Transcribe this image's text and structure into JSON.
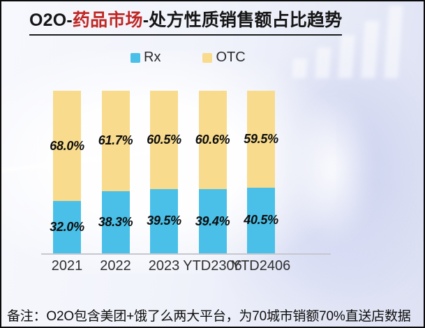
{
  "title": {
    "prefix": "O2O-",
    "highlight": "药品市场",
    "suffix": "-处方性质销售额占比趋势"
  },
  "footer": {
    "note": "备注：O2O包含美团+饿了么两大平台，为70城市销额70%直送店数据"
  },
  "colors": {
    "rx": "#4AC0E8",
    "otc": "#F8DB8D",
    "title_highlight": "#BF2724",
    "axis_line": "#C6C8CE",
    "label_text": "#0C0C0C"
  },
  "chart_data": {
    "type": "bar",
    "stacked": true,
    "unit": "%",
    "title": "O2O-药品市场-处方性质销售额占比趋势",
    "categories": [
      "2021",
      "2022",
      "2023",
      "YTD2306",
      "YTD2406"
    ],
    "series": [
      {
        "name": "Rx",
        "color": "#4AC0E8",
        "values": [
          32.0,
          38.3,
          39.5,
          39.4,
          40.5
        ],
        "labels": [
          "32.0%",
          "38.3%",
          "39.5%",
          "39.4%",
          "40.5%"
        ]
      },
      {
        "name": "OTC",
        "color": "#F8DB8D",
        "values": [
          68.0,
          61.7,
          60.5,
          60.6,
          59.5
        ],
        "labels": [
          "68.0%",
          "61.7%",
          "60.5%",
          "60.6%",
          "59.5%"
        ]
      }
    ],
    "ylim": [
      0,
      100
    ],
    "grid": false,
    "legend_position": "top"
  }
}
